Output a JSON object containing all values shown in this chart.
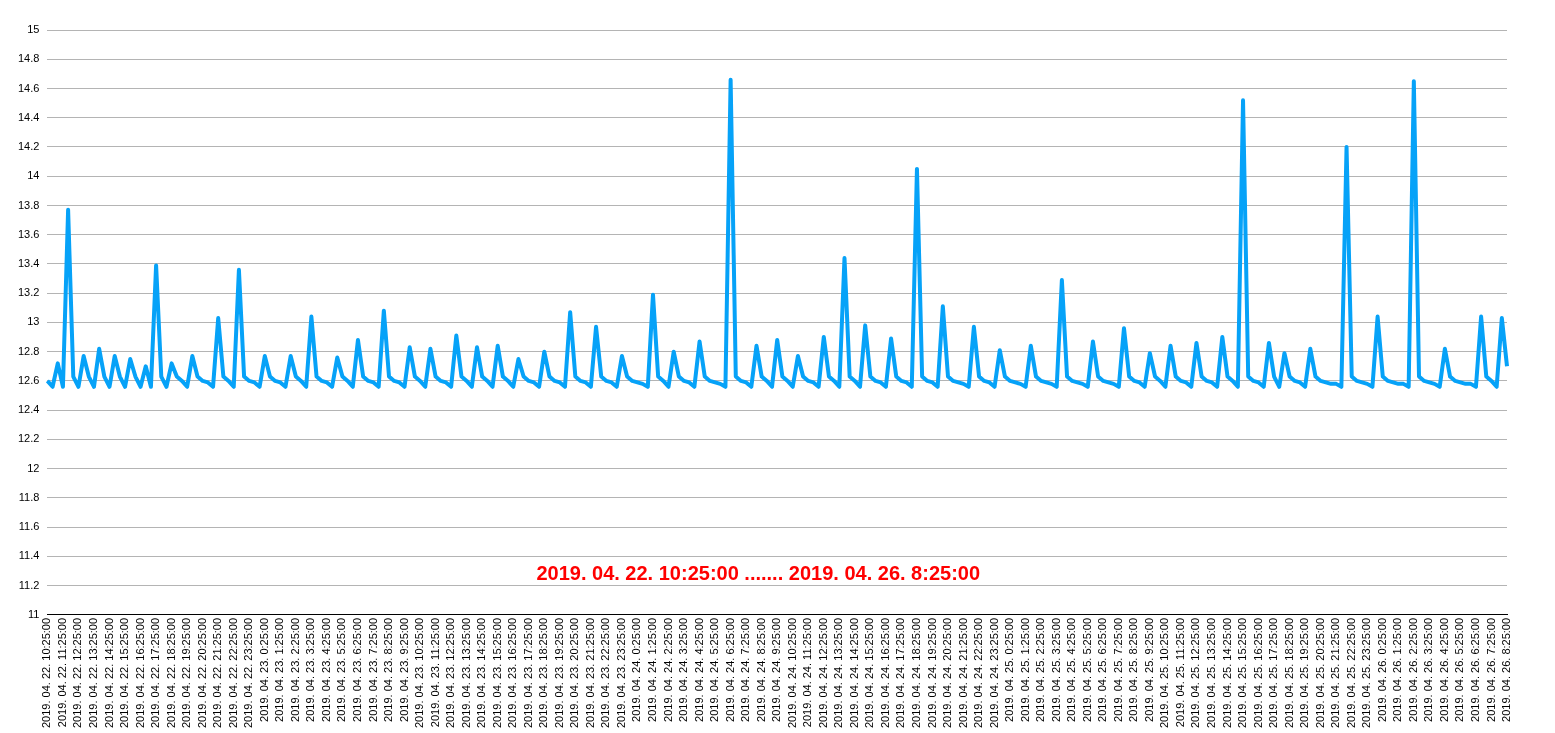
{
  "chart_data": {
    "type": "line",
    "annotations": [
      "2019. 04. 22. 10:25:00 ....... 2019. 04. 26. 8:25:00"
    ],
    "grid": "y",
    "legend": false,
    "ylim": [
      11,
      15
    ],
    "yticks": [
      11,
      11.2,
      11.4,
      11.6,
      11.8,
      12,
      12.2,
      12.4,
      12.6,
      12.8,
      13,
      13.2,
      13.4,
      13.6,
      13.8,
      14,
      14.2,
      14.4,
      14.6,
      14.8,
      15
    ],
    "categories": [
      "2019. 04. 22. 10:25:00",
      null,
      null,
      "2019. 04. 22. 11:25:00",
      null,
      null,
      "2019. 04. 22. 12:25:00",
      null,
      null,
      "2019. 04. 22. 13:25:00",
      null,
      null,
      "2019. 04. 22. 14:25:00",
      null,
      null,
      "2019. 04. 22. 15:25:00",
      null,
      null,
      "2019. 04. 22. 16:25:00",
      null,
      null,
      "2019. 04. 22. 17:25:00",
      null,
      null,
      "2019. 04. 22. 18:25:00",
      null,
      null,
      "2019. 04. 22. 19:25:00",
      null,
      null,
      "2019. 04. 22. 20:25:00",
      null,
      null,
      "2019. 04. 22. 21:25:00",
      null,
      null,
      "2019. 04. 22. 22:25:00",
      null,
      null,
      "2019. 04. 22. 23:25:00",
      null,
      null,
      "2019. 04. 23. 0:25:00",
      null,
      null,
      "2019. 04. 23. 1:25:00",
      null,
      null,
      "2019. 04. 23. 2:25:00",
      null,
      null,
      "2019. 04. 23. 3:25:00",
      null,
      null,
      "2019. 04. 23. 4:25:00",
      null,
      null,
      "2019. 04. 23. 5:25:00",
      null,
      null,
      "2019. 04. 23. 6:25:00",
      null,
      null,
      "2019. 04. 23. 7:25:00",
      null,
      null,
      "2019. 04. 23. 8:25:00",
      null,
      null,
      "2019. 04. 23. 9:25:00",
      null,
      null,
      "2019. 04. 23. 10:25:00",
      null,
      null,
      "2019. 04. 23. 11:25:00",
      null,
      null,
      "2019. 04. 23. 12:25:00",
      null,
      null,
      "2019. 04. 23. 13:25:00",
      null,
      null,
      "2019. 04. 23. 14:25:00",
      null,
      null,
      "2019. 04. 23. 15:25:00",
      null,
      null,
      "2019. 04. 23. 16:25:00",
      null,
      null,
      "2019. 04. 23. 17:25:00",
      null,
      null,
      "2019. 04. 23. 18:25:00",
      null,
      null,
      "2019. 04. 23. 19:25:00",
      null,
      null,
      "2019. 04. 23. 20:25:00",
      null,
      null,
      "2019. 04. 23. 21:25:00",
      null,
      null,
      "2019. 04. 23. 22:25:00",
      null,
      null,
      "2019. 04. 23. 23:25:00",
      null,
      null,
      "2019. 04. 24. 0:25:00",
      null,
      null,
      "2019. 04. 24. 1:25:00",
      null,
      null,
      "2019. 04. 24. 2:25:00",
      null,
      null,
      "2019. 04. 24. 3:25:00",
      null,
      null,
      "2019. 04. 24. 4:25:00",
      null,
      null,
      "2019. 04. 24. 5:25:00",
      null,
      null,
      "2019. 04. 24. 6:25:00",
      null,
      null,
      "2019. 04. 24. 7:25:00",
      null,
      null,
      "2019. 04. 24. 8:25:00",
      null,
      null,
      "2019. 04. 24. 9:25:00",
      null,
      null,
      "2019. 04. 24. 10:25:00",
      null,
      null,
      "2019. 04. 24. 11:25:00",
      null,
      null,
      "2019. 04. 24. 12:25:00",
      null,
      null,
      "2019. 04. 24. 13:25:00",
      null,
      null,
      "2019. 04. 24. 14:25:00",
      null,
      null,
      "2019. 04. 24. 15:25:00",
      null,
      null,
      "2019. 04. 24. 16:25:00",
      null,
      null,
      "2019. 04. 24. 17:25:00",
      null,
      null,
      "2019. 04. 24. 18:25:00",
      null,
      null,
      "2019. 04. 24. 19:25:00",
      null,
      null,
      "2019. 04. 24. 20:25:00",
      null,
      null,
      "2019. 04. 24. 21:25:00",
      null,
      null,
      "2019. 04. 24. 22:25:00",
      null,
      null,
      "2019. 04. 24. 23:25:00",
      null,
      null,
      "2019. 04. 25. 0:25:00",
      null,
      null,
      "2019. 04. 25. 1:25:00",
      null,
      null,
      "2019. 04. 25. 2:25:00",
      null,
      null,
      "2019. 04. 25. 3:25:00",
      null,
      null,
      "2019. 04. 25. 4:25:00",
      null,
      null,
      "2019. 04. 25. 5:25:00",
      null,
      null,
      "2019. 04. 25. 6:25:00",
      null,
      null,
      "2019. 04. 25. 7:25:00",
      null,
      null,
      "2019. 04. 25. 8:25:00",
      null,
      null,
      "2019. 04. 25. 9:25:00",
      null,
      null,
      "2019. 04. 25. 10:25:00",
      null,
      null,
      "2019. 04. 25. 11:25:00",
      null,
      null,
      "2019. 04. 25. 12:25:00",
      null,
      null,
      "2019. 04. 25. 13:25:00",
      null,
      null,
      "2019. 04. 25. 14:25:00",
      null,
      null,
      "2019. 04. 25. 15:25:00",
      null,
      null,
      "2019. 04. 25. 16:25:00",
      null,
      null,
      "2019. 04. 25. 17:25:00",
      null,
      null,
      "2019. 04. 25. 18:25:00",
      null,
      null,
      "2019. 04. 25. 19:25:00",
      null,
      null,
      "2019. 04. 25. 20:25:00",
      null,
      null,
      "2019. 04. 25. 21:25:00",
      null,
      null,
      "2019. 04. 25. 22:25:00",
      null,
      null,
      "2019. 04. 25. 23:25:00",
      null,
      null,
      "2019. 04. 26. 0:25:00",
      null,
      null,
      "2019. 04. 26. 1:25:00",
      null,
      null,
      "2019. 04. 26. 2:25:00",
      null,
      null,
      "2019. 04. 26. 3:25:00",
      null,
      null,
      "2019. 04. 26. 4:25:00",
      null,
      null,
      "2019. 04. 26. 5:25:00",
      null,
      null,
      "2019. 04. 26. 6:25:00",
      null,
      null,
      "2019. 04. 26. 7:25:00",
      null,
      null,
      "2019. 04. 26. 8:25:00"
    ],
    "series": [
      {
        "color": "#06a2f8",
        "values": [
          12.6,
          12.56,
          12.72,
          12.56,
          13.77,
          12.63,
          12.56,
          12.77,
          12.63,
          12.56,
          12.82,
          12.63,
          12.56,
          12.77,
          12.63,
          12.56,
          12.75,
          12.63,
          12.56,
          12.7,
          12.56,
          13.39,
          12.63,
          12.56,
          12.72,
          12.63,
          12.6,
          12.56,
          12.77,
          12.63,
          12.6,
          12.59,
          12.56,
          13.03,
          12.63,
          12.6,
          12.56,
          13.36,
          12.63,
          12.6,
          12.59,
          12.56,
          12.77,
          12.63,
          12.6,
          12.59,
          12.56,
          12.77,
          12.63,
          12.6,
          12.56,
          13.04,
          12.63,
          12.6,
          12.59,
          12.56,
          12.76,
          12.63,
          12.6,
          12.56,
          12.88,
          12.63,
          12.6,
          12.59,
          12.56,
          13.08,
          12.63,
          12.6,
          12.59,
          12.56,
          12.83,
          12.63,
          12.6,
          12.56,
          12.82,
          12.63,
          12.6,
          12.59,
          12.56,
          12.91,
          12.63,
          12.6,
          12.56,
          12.83,
          12.63,
          12.6,
          12.56,
          12.84,
          12.63,
          12.6,
          12.56,
          12.75,
          12.63,
          12.6,
          12.59,
          12.56,
          12.8,
          12.63,
          12.6,
          12.59,
          12.56,
          13.07,
          12.63,
          12.6,
          12.59,
          12.56,
          12.97,
          12.63,
          12.6,
          12.59,
          12.56,
          12.77,
          12.63,
          12.6,
          12.59,
          12.58,
          12.56,
          13.19,
          12.63,
          12.6,
          12.56,
          12.8,
          12.63,
          12.6,
          12.59,
          12.56,
          12.87,
          12.63,
          12.6,
          12.59,
          12.58,
          12.56,
          14.66,
          12.63,
          12.6,
          12.59,
          12.56,
          12.84,
          12.63,
          12.6,
          12.56,
          12.88,
          12.63,
          12.6,
          12.56,
          12.77,
          12.63,
          12.6,
          12.59,
          12.56,
          12.9,
          12.63,
          12.6,
          12.56,
          13.44,
          12.63,
          12.6,
          12.56,
          12.98,
          12.63,
          12.6,
          12.59,
          12.56,
          12.89,
          12.63,
          12.6,
          12.59,
          12.56,
          14.05,
          12.63,
          12.6,
          12.59,
          12.56,
          13.11,
          12.63,
          12.6,
          12.59,
          12.58,
          12.56,
          12.97,
          12.63,
          12.6,
          12.59,
          12.56,
          12.81,
          12.63,
          12.6,
          12.59,
          12.58,
          12.56,
          12.84,
          12.63,
          12.6,
          12.59,
          12.58,
          12.56,
          13.29,
          12.63,
          12.6,
          12.59,
          12.58,
          12.56,
          12.87,
          12.63,
          12.6,
          12.59,
          12.58,
          12.56,
          12.96,
          12.63,
          12.6,
          12.59,
          12.56,
          12.79,
          12.63,
          12.6,
          12.56,
          12.84,
          12.63,
          12.6,
          12.59,
          12.56,
          12.86,
          12.63,
          12.6,
          12.59,
          12.56,
          12.9,
          12.63,
          12.6,
          12.56,
          14.52,
          12.63,
          12.6,
          12.59,
          12.56,
          12.86,
          12.63,
          12.56,
          12.79,
          12.63,
          12.6,
          12.59,
          12.56,
          12.82,
          12.63,
          12.6,
          12.59,
          12.58,
          12.58,
          12.56,
          14.2,
          12.63,
          12.6,
          12.59,
          12.58,
          12.56,
          13.04,
          12.63,
          12.6,
          12.59,
          12.58,
          12.58,
          12.56,
          14.65,
          12.63,
          12.6,
          12.59,
          12.58,
          12.56,
          12.82,
          12.63,
          12.6,
          12.59,
          12.58,
          12.58,
          12.56,
          13.04,
          12.63,
          12.6,
          12.56,
          13.03,
          12.7
        ]
      }
    ]
  }
}
